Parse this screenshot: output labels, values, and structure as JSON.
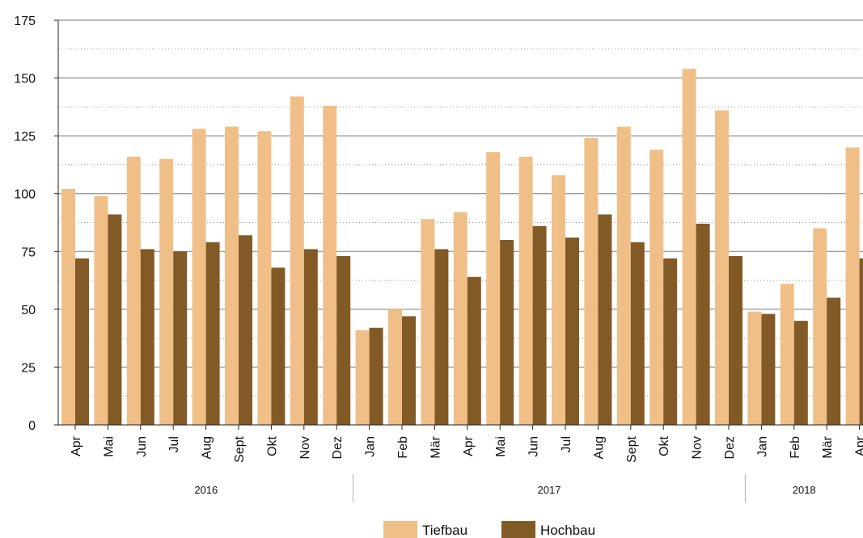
{
  "chart_data": {
    "type": "bar",
    "title": "",
    "xlabel": "",
    "ylabel": "",
    "ylim": [
      0,
      175
    ],
    "yticks": [
      0,
      25,
      50,
      75,
      100,
      125,
      150,
      175
    ],
    "grid": "horizontal major solid, minor dotted",
    "legend_position": "bottom-center",
    "categories": [
      "Apr",
      "Mai",
      "Jun",
      "Jul",
      "Aug",
      "Sept",
      "Okt",
      "Nov",
      "Dez",
      "Jan",
      "Feb",
      "Mär",
      "Apr",
      "Mai",
      "Jun",
      "Jul",
      "Aug",
      "Sept",
      "Okt",
      "Nov",
      "Dez",
      "Jan",
      "Feb",
      "Mär",
      "Apr"
    ],
    "years": [
      {
        "label": "2016",
        "count": 9
      },
      {
        "label": "2017",
        "count": 12
      },
      {
        "label": "2018",
        "count": 4
      }
    ],
    "series": [
      {
        "name": "Tiefbau",
        "color": "#f0bf88",
        "values": [
          102,
          99,
          116,
          115,
          128,
          129,
          127,
          142,
          138,
          41,
          50,
          89,
          92,
          118,
          116,
          108,
          124,
          129,
          119,
          154,
          136,
          49,
          61,
          85,
          120
        ]
      },
      {
        "name": "Hochbau",
        "color": "#825a25",
        "values": [
          72,
          91,
          76,
          75,
          79,
          82,
          68,
          76,
          73,
          42,
          47,
          76,
          64,
          80,
          86,
          81,
          91,
          79,
          72,
          87,
          73,
          48,
          45,
          55,
          72
        ]
      }
    ]
  }
}
